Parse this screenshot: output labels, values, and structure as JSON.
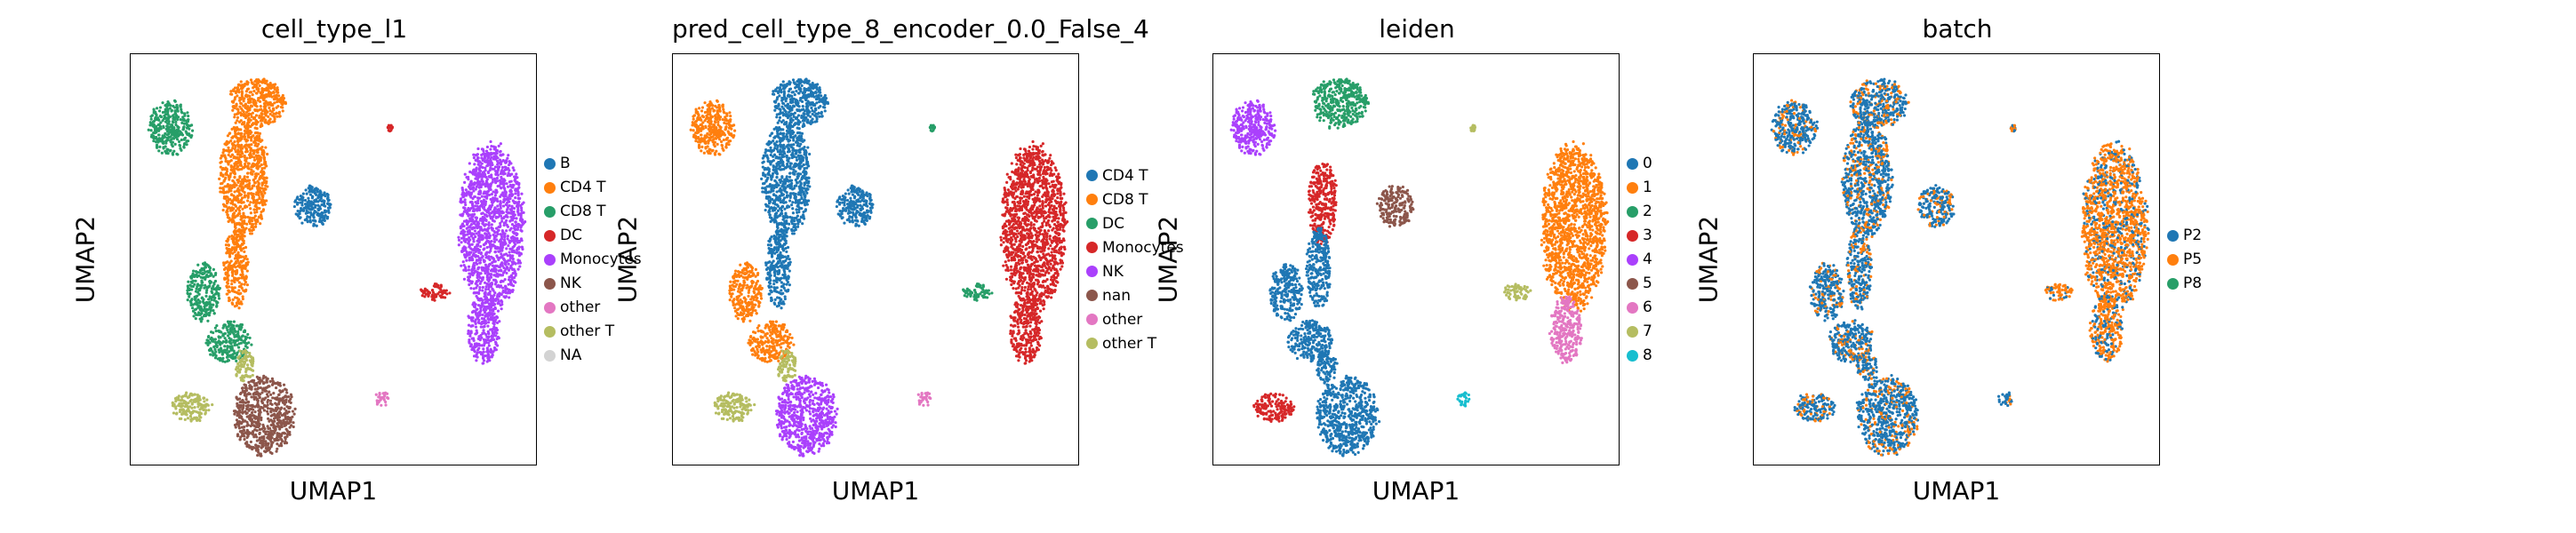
{
  "chart_data": [
    {
      "type": "scatter",
      "title": "cell_type_l1",
      "xlabel": "UMAP1",
      "ylabel": "UMAP2",
      "legend": [
        {
          "label": "B",
          "color": "#1f77b4"
        },
        {
          "label": "CD4 T",
          "color": "#ff7f0e"
        },
        {
          "label": "CD8 T",
          "color": "#279e68"
        },
        {
          "label": "DC",
          "color": "#d62728"
        },
        {
          "label": "Monocytes",
          "color": "#aa40fc"
        },
        {
          "label": "NK",
          "color": "#8c564b"
        },
        {
          "label": "other",
          "color": "#e377c2"
        },
        {
          "label": "other T",
          "color": "#b5bd61"
        },
        {
          "label": "NA",
          "color": "#d3d3d3"
        }
      ],
      "legend_placement": "right",
      "grid": false,
      "clusters": [
        {
          "cat": 2,
          "x": 0.1,
          "y": 0.82,
          "rx": 0.055,
          "ry": 0.065
        },
        {
          "cat": 1,
          "x": 0.31,
          "y": 0.88,
          "rx": 0.07,
          "ry": 0.06
        },
        {
          "cat": 1,
          "x": 0.28,
          "y": 0.7,
          "rx": 0.06,
          "ry": 0.14
        },
        {
          "cat": 1,
          "x": 0.26,
          "y": 0.48,
          "rx": 0.03,
          "ry": 0.1
        },
        {
          "cat": 0,
          "x": 0.45,
          "y": 0.63,
          "rx": 0.045,
          "ry": 0.05
        },
        {
          "cat": 2,
          "x": 0.18,
          "y": 0.42,
          "rx": 0.04,
          "ry": 0.07
        },
        {
          "cat": 2,
          "x": 0.24,
          "y": 0.3,
          "rx": 0.055,
          "ry": 0.05
        },
        {
          "cat": 5,
          "x": 0.33,
          "y": 0.12,
          "rx": 0.075,
          "ry": 0.095
        },
        {
          "cat": 7,
          "x": 0.15,
          "y": 0.14,
          "rx": 0.05,
          "ry": 0.035
        },
        {
          "cat": 7,
          "x": 0.28,
          "y": 0.24,
          "rx": 0.025,
          "ry": 0.04
        },
        {
          "cat": 4,
          "x": 0.89,
          "y": 0.58,
          "rx": 0.08,
          "ry": 0.2
        },
        {
          "cat": 4,
          "x": 0.87,
          "y": 0.33,
          "rx": 0.04,
          "ry": 0.08
        },
        {
          "cat": 3,
          "x": 0.75,
          "y": 0.42,
          "rx": 0.035,
          "ry": 0.02
        },
        {
          "cat": 6,
          "x": 0.62,
          "y": 0.16,
          "rx": 0.018,
          "ry": 0.018
        },
        {
          "cat": 3,
          "x": 0.64,
          "y": 0.82,
          "rx": 0.006,
          "ry": 0.008
        }
      ]
    },
    {
      "type": "scatter",
      "title": "pred_cell_type_8_encoder_0.0_False_4",
      "xlabel": "UMAP1",
      "ylabel": "UMAP2",
      "legend": [
        {
          "label": "CD4 T",
          "color": "#1f77b4"
        },
        {
          "label": "CD8 T",
          "color": "#ff7f0e"
        },
        {
          "label": "DC",
          "color": "#279e68"
        },
        {
          "label": "Monocytes",
          "color": "#d62728"
        },
        {
          "label": "NK",
          "color": "#aa40fc"
        },
        {
          "label": "nan",
          "color": "#8c564b"
        },
        {
          "label": "other",
          "color": "#e377c2"
        },
        {
          "label": "other T",
          "color": "#b5bd61"
        }
      ],
      "legend_placement": "right",
      "grid": false,
      "clusters": [
        {
          "cat": 1,
          "x": 0.1,
          "y": 0.82,
          "rx": 0.055,
          "ry": 0.065
        },
        {
          "cat": 0,
          "x": 0.31,
          "y": 0.88,
          "rx": 0.07,
          "ry": 0.06
        },
        {
          "cat": 0,
          "x": 0.28,
          "y": 0.7,
          "rx": 0.06,
          "ry": 0.14
        },
        {
          "cat": 0,
          "x": 0.26,
          "y": 0.48,
          "rx": 0.03,
          "ry": 0.1
        },
        {
          "cat": 0,
          "x": 0.45,
          "y": 0.63,
          "rx": 0.045,
          "ry": 0.05
        },
        {
          "cat": 1,
          "x": 0.18,
          "y": 0.42,
          "rx": 0.04,
          "ry": 0.07
        },
        {
          "cat": 1,
          "x": 0.24,
          "y": 0.3,
          "rx": 0.055,
          "ry": 0.05
        },
        {
          "cat": 4,
          "x": 0.33,
          "y": 0.12,
          "rx": 0.075,
          "ry": 0.095
        },
        {
          "cat": 7,
          "x": 0.15,
          "y": 0.14,
          "rx": 0.05,
          "ry": 0.035
        },
        {
          "cat": 7,
          "x": 0.28,
          "y": 0.24,
          "rx": 0.025,
          "ry": 0.04
        },
        {
          "cat": 3,
          "x": 0.89,
          "y": 0.58,
          "rx": 0.08,
          "ry": 0.2
        },
        {
          "cat": 3,
          "x": 0.87,
          "y": 0.33,
          "rx": 0.04,
          "ry": 0.08
        },
        {
          "cat": 2,
          "x": 0.75,
          "y": 0.42,
          "rx": 0.035,
          "ry": 0.02
        },
        {
          "cat": 6,
          "x": 0.62,
          "y": 0.16,
          "rx": 0.018,
          "ry": 0.018
        },
        {
          "cat": 2,
          "x": 0.64,
          "y": 0.82,
          "rx": 0.006,
          "ry": 0.008
        }
      ]
    },
    {
      "type": "scatter",
      "title": "leiden",
      "xlabel": "UMAP1",
      "ylabel": "UMAP2",
      "legend": [
        {
          "label": "0",
          "color": "#1f77b4"
        },
        {
          "label": "1",
          "color": "#ff7f0e"
        },
        {
          "label": "2",
          "color": "#279e68"
        },
        {
          "label": "3",
          "color": "#d62728"
        },
        {
          "label": "4",
          "color": "#aa40fc"
        },
        {
          "label": "5",
          "color": "#8c564b"
        },
        {
          "label": "6",
          "color": "#e377c2"
        },
        {
          "label": "7",
          "color": "#b5bd61"
        },
        {
          "label": "8",
          "color": "#17becf"
        }
      ],
      "legend_placement": "right",
      "grid": false,
      "clusters": [
        {
          "cat": 4,
          "x": 0.1,
          "y": 0.82,
          "rx": 0.055,
          "ry": 0.065
        },
        {
          "cat": 2,
          "x": 0.31,
          "y": 0.88,
          "rx": 0.07,
          "ry": 0.06
        },
        {
          "cat": 3,
          "x": 0.27,
          "y": 0.64,
          "rx": 0.035,
          "ry": 0.1
        },
        {
          "cat": 0,
          "x": 0.26,
          "y": 0.48,
          "rx": 0.03,
          "ry": 0.1
        },
        {
          "cat": 5,
          "x": 0.45,
          "y": 0.63,
          "rx": 0.045,
          "ry": 0.05
        },
        {
          "cat": 0,
          "x": 0.18,
          "y": 0.42,
          "rx": 0.04,
          "ry": 0.07
        },
        {
          "cat": 0,
          "x": 0.24,
          "y": 0.3,
          "rx": 0.055,
          "ry": 0.05
        },
        {
          "cat": 0,
          "x": 0.33,
          "y": 0.12,
          "rx": 0.075,
          "ry": 0.095
        },
        {
          "cat": 3,
          "x": 0.15,
          "y": 0.14,
          "rx": 0.05,
          "ry": 0.035
        },
        {
          "cat": 0,
          "x": 0.28,
          "y": 0.24,
          "rx": 0.025,
          "ry": 0.04
        },
        {
          "cat": 1,
          "x": 0.89,
          "y": 0.58,
          "rx": 0.08,
          "ry": 0.2
        },
        {
          "cat": 6,
          "x": 0.87,
          "y": 0.33,
          "rx": 0.04,
          "ry": 0.08
        },
        {
          "cat": 7,
          "x": 0.75,
          "y": 0.42,
          "rx": 0.035,
          "ry": 0.02
        },
        {
          "cat": 8,
          "x": 0.62,
          "y": 0.16,
          "rx": 0.018,
          "ry": 0.018
        },
        {
          "cat": 7,
          "x": 0.64,
          "y": 0.82,
          "rx": 0.006,
          "ry": 0.008
        }
      ]
    },
    {
      "type": "scatter",
      "title": "batch",
      "xlabel": "UMAP1",
      "ylabel": "UMAP2",
      "legend": [
        {
          "label": "P2",
          "color": "#1f77b4"
        },
        {
          "label": "P5",
          "color": "#ff7f0e"
        },
        {
          "label": "P8",
          "color": "#279e68"
        }
      ],
      "legend_placement": "right",
      "grid": false,
      "mixed_categories": [
        0,
        1
      ],
      "clusters": [
        {
          "cat": 0,
          "x": 0.1,
          "y": 0.82,
          "rx": 0.055,
          "ry": 0.065
        },
        {
          "cat": 0,
          "x": 0.31,
          "y": 0.88,
          "rx": 0.07,
          "ry": 0.06
        },
        {
          "cat": 0,
          "x": 0.28,
          "y": 0.7,
          "rx": 0.06,
          "ry": 0.14
        },
        {
          "cat": 0,
          "x": 0.26,
          "y": 0.48,
          "rx": 0.03,
          "ry": 0.1
        },
        {
          "cat": 0,
          "x": 0.45,
          "y": 0.63,
          "rx": 0.045,
          "ry": 0.05
        },
        {
          "cat": 0,
          "x": 0.18,
          "y": 0.42,
          "rx": 0.04,
          "ry": 0.07
        },
        {
          "cat": 0,
          "x": 0.24,
          "y": 0.3,
          "rx": 0.055,
          "ry": 0.05
        },
        {
          "cat": 0,
          "x": 0.33,
          "y": 0.12,
          "rx": 0.075,
          "ry": 0.095
        },
        {
          "cat": 0,
          "x": 0.15,
          "y": 0.14,
          "rx": 0.05,
          "ry": 0.035
        },
        {
          "cat": 0,
          "x": 0.28,
          "y": 0.24,
          "rx": 0.025,
          "ry": 0.04
        },
        {
          "cat": 1,
          "x": 0.89,
          "y": 0.58,
          "rx": 0.08,
          "ry": 0.2
        },
        {
          "cat": 1,
          "x": 0.87,
          "y": 0.33,
          "rx": 0.04,
          "ry": 0.08
        },
        {
          "cat": 1,
          "x": 0.75,
          "y": 0.42,
          "rx": 0.035,
          "ry": 0.02
        },
        {
          "cat": 0,
          "x": 0.62,
          "y": 0.16,
          "rx": 0.018,
          "ry": 0.018
        },
        {
          "cat": 0,
          "x": 0.64,
          "y": 0.82,
          "rx": 0.006,
          "ry": 0.008
        }
      ]
    }
  ]
}
